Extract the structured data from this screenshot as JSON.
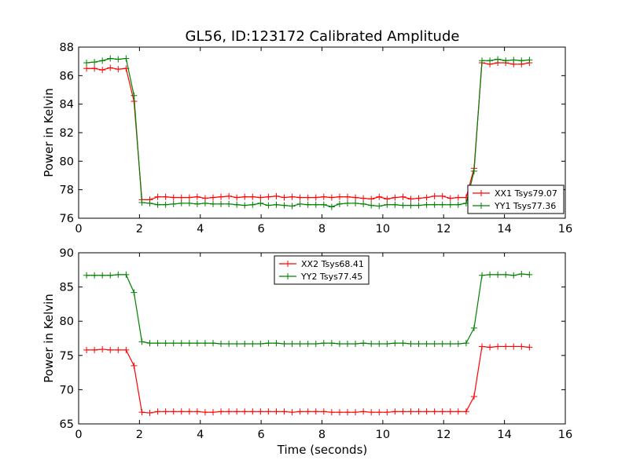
{
  "chart_data": [
    {
      "type": "line",
      "title": "GL56, ID:123172 Calibrated Amplitude",
      "xlabel": "",
      "ylabel": "Power in Kelvin",
      "xlim": [
        0,
        16
      ],
      "ylim": [
        76,
        88
      ],
      "xticks": [
        0,
        2,
        4,
        6,
        8,
        10,
        12,
        14,
        16
      ],
      "yticks": [
        76,
        78,
        80,
        82,
        84,
        86,
        88
      ],
      "legend_position": "lower-right",
      "x": [
        0.26,
        0.52,
        0.78,
        1.04,
        1.3,
        1.56,
        1.82,
        2.08,
        2.34,
        2.6,
        2.86,
        3.12,
        3.38,
        3.64,
        3.9,
        4.16,
        4.42,
        4.68,
        4.94,
        5.2,
        5.46,
        5.72,
        5.98,
        6.24,
        6.5,
        6.76,
        7.02,
        7.28,
        7.54,
        7.8,
        8.06,
        8.32,
        8.58,
        8.84,
        9.1,
        9.36,
        9.62,
        9.88,
        10.14,
        10.4,
        10.66,
        10.92,
        11.18,
        11.44,
        11.7,
        11.96,
        12.22,
        12.48,
        12.74,
        13.0,
        13.26,
        13.52,
        13.78,
        14.04,
        14.3,
        14.56,
        14.82
      ],
      "series": [
        {
          "name": "XX1 Tsys79.07",
          "color": "#ff0000",
          "values": [
            86.5,
            86.5,
            86.4,
            86.55,
            86.45,
            86.5,
            84.2,
            77.3,
            77.3,
            77.5,
            77.5,
            77.45,
            77.45,
            77.45,
            77.5,
            77.4,
            77.45,
            77.5,
            77.55,
            77.45,
            77.5,
            77.5,
            77.45,
            77.5,
            77.55,
            77.45,
            77.5,
            77.45,
            77.45,
            77.45,
            77.5,
            77.45,
            77.5,
            77.5,
            77.45,
            77.4,
            77.35,
            77.5,
            77.35,
            77.45,
            77.5,
            77.35,
            77.4,
            77.45,
            77.55,
            77.55,
            77.4,
            77.45,
            77.45,
            79.5,
            86.9,
            86.8,
            86.9,
            86.9,
            86.8,
            86.8,
            86.9
          ]
        },
        {
          "name": "YY1 Tsys77.36",
          "color": "#008000",
          "values": [
            86.9,
            86.95,
            87.05,
            87.2,
            87.15,
            87.2,
            84.6,
            77.1,
            77.05,
            76.95,
            76.95,
            77.0,
            77.05,
            77.05,
            77.0,
            77.05,
            77.0,
            77.0,
            77.0,
            76.95,
            76.9,
            76.95,
            77.05,
            76.9,
            76.95,
            76.9,
            76.85,
            77.0,
            76.95,
            76.95,
            76.95,
            76.8,
            77.0,
            77.05,
            77.05,
            77.0,
            76.9,
            76.85,
            76.95,
            76.95,
            76.9,
            76.9,
            76.9,
            76.95,
            76.95,
            76.95,
            76.95,
            76.95,
            77.05,
            79.3,
            87.05,
            87.05,
            87.15,
            87.05,
            87.1,
            87.05,
            87.1
          ]
        }
      ]
    },
    {
      "type": "line",
      "title": "",
      "xlabel": "Time (seconds)",
      "ylabel": "Power in Kelvin",
      "xlim": [
        0,
        16
      ],
      "ylim": [
        65,
        90
      ],
      "xticks": [
        0,
        2,
        4,
        6,
        8,
        10,
        12,
        14,
        16
      ],
      "yticks": [
        65,
        70,
        75,
        80,
        85,
        90
      ],
      "legend_position": "upper-center",
      "x": [
        0.26,
        0.52,
        0.78,
        1.04,
        1.3,
        1.56,
        1.82,
        2.08,
        2.34,
        2.6,
        2.86,
        3.12,
        3.38,
        3.64,
        3.9,
        4.16,
        4.42,
        4.68,
        4.94,
        5.2,
        5.46,
        5.72,
        5.98,
        6.24,
        6.5,
        6.76,
        7.02,
        7.28,
        7.54,
        7.8,
        8.06,
        8.32,
        8.58,
        8.84,
        9.1,
        9.36,
        9.62,
        9.88,
        10.14,
        10.4,
        10.66,
        10.92,
        11.18,
        11.44,
        11.7,
        11.96,
        12.22,
        12.48,
        12.74,
        13.0,
        13.26,
        13.52,
        13.78,
        14.04,
        14.3,
        14.56,
        14.82
      ],
      "series": [
        {
          "name": "XX2 Tsys68.41",
          "color": "#ff0000",
          "values": [
            75.8,
            75.8,
            75.9,
            75.8,
            75.8,
            75.8,
            73.5,
            66.7,
            66.6,
            66.8,
            66.8,
            66.8,
            66.8,
            66.8,
            66.8,
            66.7,
            66.7,
            66.8,
            66.8,
            66.8,
            66.8,
            66.8,
            66.8,
            66.8,
            66.8,
            66.8,
            66.7,
            66.8,
            66.8,
            66.8,
            66.8,
            66.7,
            66.7,
            66.7,
            66.7,
            66.8,
            66.7,
            66.7,
            66.7,
            66.8,
            66.8,
            66.8,
            66.8,
            66.8,
            66.8,
            66.8,
            66.8,
            66.8,
            66.8,
            69.0,
            76.3,
            76.2,
            76.3,
            76.3,
            76.3,
            76.3,
            76.2
          ]
        },
        {
          "name": "YY2 Tsys77.45",
          "color": "#008000",
          "values": [
            86.7,
            86.7,
            86.7,
            86.7,
            86.8,
            86.8,
            84.2,
            77.0,
            76.8,
            76.8,
            76.8,
            76.8,
            76.8,
            76.8,
            76.8,
            76.8,
            76.8,
            76.7,
            76.7,
            76.7,
            76.7,
            76.7,
            76.7,
            76.8,
            76.8,
            76.7,
            76.7,
            76.7,
            76.7,
            76.7,
            76.8,
            76.8,
            76.7,
            76.7,
            76.7,
            76.8,
            76.7,
            76.7,
            76.7,
            76.8,
            76.8,
            76.7,
            76.7,
            76.7,
            76.7,
            76.7,
            76.7,
            76.7,
            76.8,
            79.0,
            86.7,
            86.8,
            86.8,
            86.8,
            86.7,
            86.9,
            86.8
          ]
        }
      ]
    }
  ]
}
